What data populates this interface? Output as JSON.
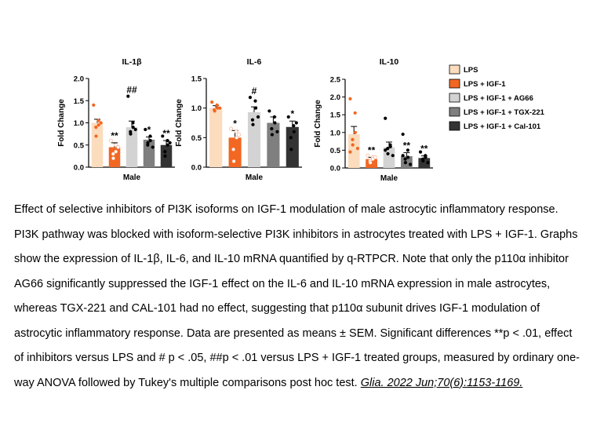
{
  "colors": {
    "LPS": "#fbdcbd",
    "LPS + IGF-1": "#f26722",
    "LPS + IGF-1 + AG66": "#d3d3d3",
    "LPS + IGF-1 + TGX-221": "#7f7f7f",
    "LPS + IGF-1 + Cal-101": "#333333"
  },
  "legend": {
    "position": "right",
    "entries": [
      "LPS",
      "LPS + IGF-1",
      "LPS + IGF-1 + AG66",
      "LPS + IGF-1 + TGX-221",
      "LPS + IGF-1 + Cal-101"
    ]
  },
  "chart_data": [
    {
      "type": "bar",
      "title": "IL-1β",
      "xlabel": "Male",
      "ylabel": "Fold Change",
      "ylim": [
        0,
        2.0
      ],
      "yticks": [
        "0.0",
        "0.5",
        "1.0",
        "1.5",
        "2.0"
      ],
      "categories": [
        "LPS",
        "LPS + IGF-1",
        "LPS + IGF-1 + AG66",
        "LPS + IGF-1 + TGX-221",
        "LPS + IGF-1 + Cal-101"
      ],
      "values": [
        1.0,
        0.45,
        0.9,
        0.62,
        0.5
      ],
      "errors": [
        0.08,
        0.1,
        0.14,
        0.06,
        0.1
      ],
      "points": [
        [
          1.4,
          1.05,
          0.95,
          0.9,
          0.7,
          1.0
        ],
        [
          0.6,
          0.5,
          0.35,
          0.3,
          0.2,
          0.45
        ],
        [
          1.6,
          1.0,
          0.9,
          0.8,
          0.75,
          0.85
        ],
        [
          0.85,
          0.7,
          0.6,
          0.5,
          0.55,
          0.45
        ],
        [
          0.7,
          0.6,
          0.5,
          0.35,
          0.25,
          0.55
        ]
      ],
      "annotations": [
        "",
        "**",
        "##",
        "*",
        "**"
      ]
    },
    {
      "type": "bar",
      "title": "IL-6",
      "xlabel": "Male",
      "ylabel": "Fold Change",
      "ylim": [
        0,
        1.5
      ],
      "yticks": [
        "0.0",
        "0.5",
        "1.0",
        "1.5"
      ],
      "categories": [
        "LPS",
        "LPS + IGF-1",
        "LPS + IGF-1 + AG66",
        "LPS + IGF-1 + TGX-221",
        "LPS + IGF-1 + Cal-101"
      ],
      "values": [
        1.0,
        0.5,
        0.93,
        0.75,
        0.68
      ],
      "errors": [
        0.04,
        0.12,
        0.09,
        0.1,
        0.1
      ],
      "points": [
        [
          1.1,
          1.05,
          1.0,
          0.97,
          0.95,
          1.0
        ],
        [
          0.65,
          0.6,
          0.5,
          0.3,
          0.1,
          0.55
        ],
        [
          1.18,
          1.12,
          1.0,
          0.8,
          0.72,
          0.85
        ],
        [
          0.95,
          0.85,
          0.75,
          0.65,
          0.55,
          0.6
        ],
        [
          0.85,
          0.7,
          0.6,
          0.5,
          0.3,
          0.75
        ]
      ],
      "annotations": [
        "",
        "*",
        "#",
        "",
        "*"
      ]
    },
    {
      "type": "bar",
      "title": "IL-10",
      "xlabel": "Male",
      "ylabel": "Fold Change",
      "ylim": [
        0,
        2.5
      ],
      "yticks": [
        "0.0",
        "0.5",
        "1.0",
        "1.5",
        "2.0",
        "2.5"
      ],
      "categories": [
        "LPS",
        "LPS + IGF-1",
        "LPS + IGF-1 + AG66",
        "LPS + IGF-1 + TGX-221",
        "LPS + IGF-1 + Cal-101"
      ],
      "values": [
        0.95,
        0.25,
        0.58,
        0.33,
        0.28
      ],
      "errors": [
        0.22,
        0.05,
        0.15,
        0.1,
        0.06
      ],
      "points": [
        [
          1.95,
          1.55,
          1.0,
          0.8,
          0.65,
          0.55,
          0.45
        ],
        [
          0.35,
          0.3,
          0.25,
          0.2,
          0.15,
          0.3
        ],
        [
          1.4,
          0.65,
          0.6,
          0.55,
          0.4,
          0.35,
          0.5
        ],
        [
          0.95,
          0.5,
          0.3,
          0.25,
          0.15,
          0.1,
          0.35
        ],
        [
          0.45,
          0.35,
          0.3,
          0.25,
          0.2,
          0.15
        ]
      ],
      "annotations": [
        "",
        "**",
        "",
        "**",
        "**"
      ]
    }
  ],
  "caption": {
    "text": "Effect of selective inhibitors of PI3K isoforms on IGF-1 modulation of male astrocytic inflammatory response. PI3K pathway was blocked with isoform-selective PI3K inhibitors in astrocytes treated with LPS + IGF-1. Graphs show the expression of IL-1β, IL-6, and IL-10 mRNA quantified by q-RTPCR. Note that only the p110α inhibitor AG66 significantly suppressed the IGF-1 effect on the IL-6 and IL-10 mRNA expression in male astrocytes, whereas TGX-221 and CAL-101 had no effect, suggesting that p110α subunit drives IGF-1 modulation of astrocytic inflammatory response. Data are presented as means ± SEM. Significant differences **p < .01, effect of inhibitors versus LPS and # p < .05, ##p < .01 versus LPS + IGF-1 treated groups, measured by ordinary one-way ANOVA followed by Tukey's multiple comparisons post hoc test.",
    "citation": "Glia. 2022 Jun;70(6):1153-1169."
  }
}
